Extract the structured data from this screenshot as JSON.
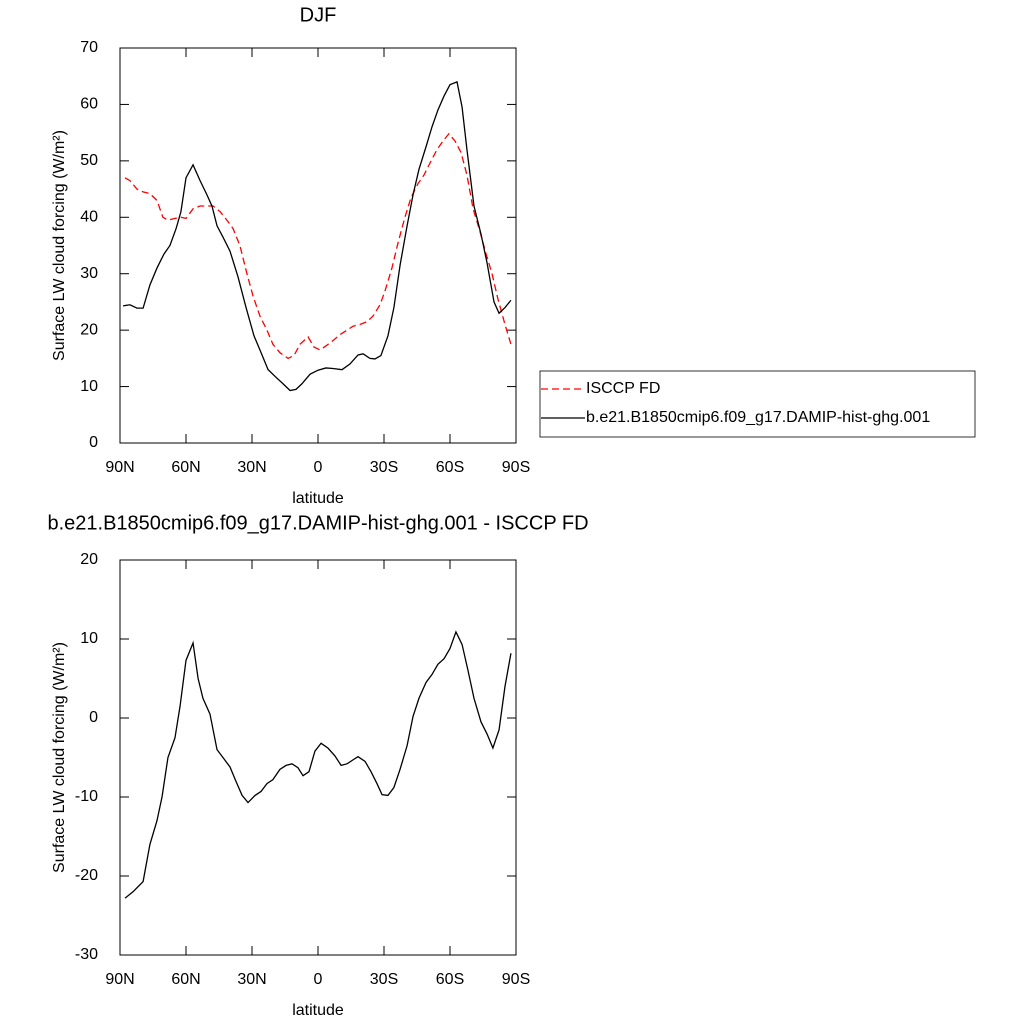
{
  "chart_data": [
    {
      "type": "line",
      "title": "DJF",
      "xlabel": "latitude",
      "ylabel": "Surface LW cloud forcing (W/m²)",
      "xlim": [
        90,
        -90
      ],
      "xticks": [
        {
          "value": 90,
          "label": "90N"
        },
        {
          "value": 60,
          "label": "60N"
        },
        {
          "value": 30,
          "label": "30N"
        },
        0,
        {
          "value": -30,
          "label": "30S"
        },
        {
          "value": -60,
          "label": "60S"
        },
        {
          "value": -90,
          "label": "90S"
        }
      ],
      "ylim": [
        0,
        70
      ],
      "yticks": [
        0,
        10,
        20,
        30,
        40,
        50,
        60,
        70
      ],
      "legend": "right",
      "series": [
        {
          "name": "ISCCP FD",
          "color": "#ff0000",
          "dashed": true,
          "x": [
            87.7,
            85.5,
            82.3,
            79.5,
            76.4,
            73.2,
            70.5,
            68.2,
            65.0,
            62.3,
            60.0,
            56.8,
            53.6,
            50.5,
            47.7,
            44.5,
            41.4,
            38.6,
            35.5,
            32.3,
            29.5,
            26.4,
            23.2,
            20.5,
            17.3,
            13.6,
            10.9,
            8.2,
            4.5,
            1.8,
            -0.9,
            -3.6,
            -7.3,
            -10.0,
            -13.2,
            -15.9,
            -19.1,
            -22.3,
            -25.0,
            -28.2,
            -30.5,
            -33.6,
            -36.4,
            -39.5,
            -42.3,
            -45.5,
            -48.2,
            -51.4,
            -54.1,
            -56.8,
            -59.5,
            -62.3,
            -65.0,
            -67.7,
            -70.5,
            -73.6,
            -76.4,
            -79.1,
            -81.8,
            -85.0,
            -87.7,
            -88.6
          ],
          "values": [
            47,
            46.5,
            45,
            44.5,
            44.2,
            43,
            40,
            39.5,
            39.8,
            40,
            39.8,
            41.5,
            42,
            42,
            42,
            41,
            39.5,
            38,
            35,
            30,
            26,
            22.5,
            20,
            17.5,
            16,
            15,
            15.5,
            17.5,
            18.8,
            17,
            16.5,
            17.2,
            18.3,
            19.2,
            20,
            20.7,
            21,
            21.5,
            22.5,
            24.5,
            27,
            31,
            35.5,
            40,
            43.5,
            46,
            47.5,
            50,
            52,
            53.5,
            54.8,
            53.5,
            51.5,
            47.5,
            41.5,
            37.5,
            33.5,
            30,
            25.5,
            21,
            17.5,
            17
          ]
        },
        {
          "name": "b.e21.B1850cmip6.f09_g17.DAMIP-hist-ghg.001",
          "color": "#000000",
          "dashed": false,
          "x": [
            88.6,
            85.5,
            82.3,
            79.5,
            76.4,
            73.2,
            70.0,
            67.3,
            64.5,
            62.3,
            60.0,
            56.8,
            53.6,
            50.5,
            48.2,
            45.9,
            43.2,
            40.0,
            36.4,
            32.7,
            29.1,
            26.4,
            22.7,
            19.5,
            15.9,
            12.7,
            10.0,
            7.3,
            3.6,
            0.0,
            -3.6,
            -6.8,
            -10.9,
            -14.5,
            -18.2,
            -20.5,
            -23.6,
            -25.9,
            -28.6,
            -31.8,
            -34.5,
            -37.3,
            -40.5,
            -43.2,
            -45.9,
            -49.1,
            -51.8,
            -54.5,
            -57.3,
            -60.0,
            -63.2,
            -65.5,
            -67.7,
            -70.9,
            -74.1,
            -76.8,
            -80.0,
            -82.3,
            -85.0,
            -87.7
          ],
          "values": [
            24.3,
            24.5,
            23.9,
            23.9,
            28,
            31,
            33.5,
            35,
            38,
            41,
            47,
            49.3,
            46.5,
            44,
            42,
            38.5,
            36.5,
            34,
            29.5,
            24,
            19,
            16.5,
            13,
            11.8,
            10.5,
            9.3,
            9.5,
            10.5,
            12.2,
            12.9,
            13.3,
            13.2,
            13,
            14,
            15.6,
            15.8,
            15,
            14.9,
            15.5,
            19,
            24,
            31.5,
            38.5,
            44,
            48.5,
            52.5,
            56,
            59,
            61.5,
            63.5,
            64,
            59.5,
            52,
            42,
            37,
            32,
            25,
            23,
            24,
            25.3
          ]
        }
      ]
    },
    {
      "type": "line",
      "title": "b.e21.B1850cmip6.f09_g17.DAMIP-hist-ghg.001 - ISCCP FD",
      "xlabel": "latitude",
      "ylabel": "Surface LW cloud forcing (W/m²)",
      "xlim": [
        90,
        -90
      ],
      "xticks": [
        {
          "value": 90,
          "label": "90N"
        },
        {
          "value": 60,
          "label": "60N"
        },
        {
          "value": 30,
          "label": "30N"
        },
        0,
        {
          "value": -30,
          "label": "30S"
        },
        {
          "value": -60,
          "label": "60S"
        },
        {
          "value": -90,
          "label": "90S"
        }
      ],
      "ylim": [
        -30,
        20
      ],
      "yticks": [
        -30,
        -20,
        -10,
        0,
        10,
        20
      ],
      "series": [
        {
          "color": "#000000",
          "dashed": false,
          "x": [
            87.7,
            84.1,
            79.5,
            76.4,
            73.2,
            70.9,
            68.2,
            65.0,
            62.7,
            60.0,
            56.8,
            54.5,
            52.3,
            49.1,
            45.9,
            43.2,
            40.0,
            37.3,
            34.5,
            31.8,
            28.6,
            25.9,
            23.2,
            20.5,
            17.3,
            14.5,
            11.8,
            9.1,
            6.8,
            4.1,
            1.4,
            -1.4,
            -4.5,
            -7.7,
            -10.5,
            -13.2,
            -15.9,
            -18.2,
            -21.4,
            -24.1,
            -26.8,
            -29.1,
            -31.8,
            -34.5,
            -37.3,
            -40.5,
            -43.2,
            -45.9,
            -49.1,
            -51.8,
            -54.5,
            -57.3,
            -60.0,
            -62.7,
            -65.5,
            -68.2,
            -70.9,
            -74.1,
            -76.8,
            -79.5,
            -82.3,
            -85.0,
            -87.7
          ],
          "values": [
            -22.8,
            -22,
            -20.7,
            -16,
            -13,
            -10,
            -5,
            -2.5,
            1.5,
            7.3,
            9.5,
            5,
            2.5,
            0.5,
            -4,
            -5,
            -6.2,
            -8,
            -9.8,
            -10.7,
            -9.8,
            -9.3,
            -8.3,
            -7.8,
            -6.5,
            -6,
            -5.8,
            -6.3,
            -7.3,
            -6.8,
            -4.2,
            -3.2,
            -3.8,
            -4.8,
            -6,
            -5.8,
            -5.3,
            -4.9,
            -5.5,
            -6.8,
            -8.3,
            -9.7,
            -9.8,
            -8.8,
            -6.5,
            -3.5,
            0.2,
            2.5,
            4.5,
            5.5,
            6.8,
            7.5,
            8.8,
            10.9,
            9.3,
            6,
            2.5,
            -0.5,
            -2,
            -3.8,
            -1.5,
            4,
            8.2
          ]
        }
      ]
    }
  ]
}
